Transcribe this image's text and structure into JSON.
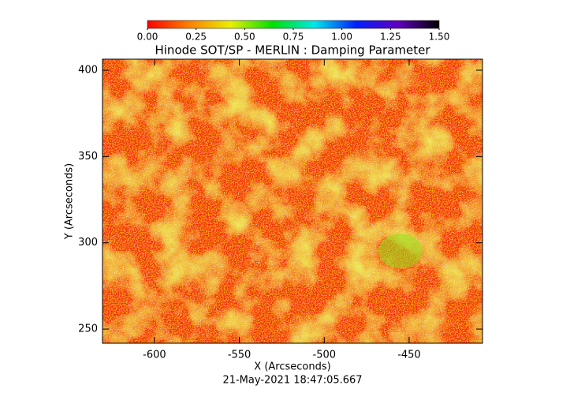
{
  "chart_data": {
    "type": "heatmap",
    "title": "Hinode SOT/SP - MERLIN : Damping Parameter",
    "x_label": "X (Arcseconds)",
    "y_label": "Y (Arcseconds)",
    "footer": "21-May-2021 18:47:05.667",
    "xlim": [
      -630.6,
      -406.8
    ],
    "ylim": [
      241.8,
      406.4
    ],
    "xticks": [
      -600,
      -550,
      -500,
      -450
    ],
    "yticks": [
      250,
      300,
      350,
      400
    ],
    "colorbar_lim": [
      0,
      1.5
    ],
    "colorbar_ticks": [
      {
        "value": 0,
        "label": "0.00"
      },
      {
        "value": 0.25,
        "label": "0.25"
      },
      {
        "value": 0.5,
        "label": "0.50"
      },
      {
        "value": 0.75,
        "label": "0.75"
      },
      {
        "value": 1,
        "label": "1.00"
      },
      {
        "value": 1.25,
        "label": "1.25"
      },
      {
        "value": 1.5,
        "label": "1.50"
      }
    ],
    "colorbar_colors": [
      "#ff0000",
      "#ff8000",
      "#e8f000",
      "#00e000",
      "#00e8e8",
      "#0020ff",
      "#6000c0",
      "#000000"
    ]
  }
}
